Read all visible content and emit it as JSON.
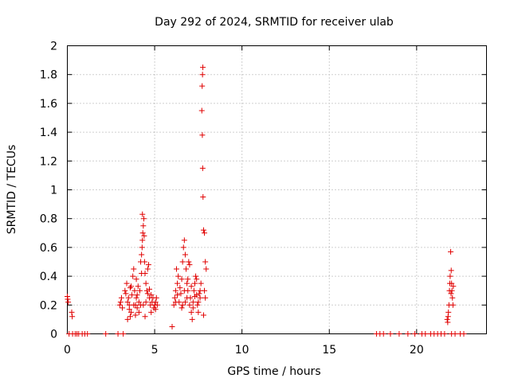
{
  "chart_data": {
    "type": "scatter",
    "title": "Day 292 of 2024, SRMTID for receiver ulab",
    "xlabel": "GPS time / hours",
    "ylabel": "SRMTID / TECUs",
    "xlim": [
      0,
      24
    ],
    "ylim": [
      0,
      2
    ],
    "xticks": [
      0,
      5,
      10,
      15,
      20
    ],
    "yticks": [
      0,
      0.2,
      0.4,
      0.6,
      0.8,
      1,
      1.2,
      1.4,
      1.6,
      1.8,
      2
    ],
    "xtick_labels": [
      "0",
      "5",
      "10",
      "15",
      "20"
    ],
    "ytick_labels": [
      "0",
      "0.2",
      "0.4",
      "0.6",
      "0.8",
      "1",
      "1.2",
      "1.4",
      "1.6",
      "1.8",
      "2"
    ],
    "grid": true,
    "marker": "+",
    "color": "#e00000",
    "series": [
      {
        "name": "SRMTID",
        "points": [
          [
            0.0,
            0.26
          ],
          [
            0.02,
            0.24
          ],
          [
            0.05,
            0.22
          ],
          [
            0.1,
            0.0
          ],
          [
            0.25,
            0.15
          ],
          [
            0.28,
            0.12
          ],
          [
            0.3,
            0.0
          ],
          [
            0.45,
            0.0
          ],
          [
            0.55,
            0.0
          ],
          [
            0.65,
            0.0
          ],
          [
            0.85,
            0.0
          ],
          [
            1.0,
            0.0
          ],
          [
            1.15,
            0.0
          ],
          [
            2.2,
            0.0
          ],
          [
            2.9,
            0.0
          ],
          [
            3.2,
            0.0
          ],
          [
            3.0,
            0.2
          ],
          [
            3.05,
            0.22
          ],
          [
            3.1,
            0.25
          ],
          [
            3.15,
            0.18
          ],
          [
            3.3,
            0.3
          ],
          [
            3.35,
            0.28
          ],
          [
            3.4,
            0.35
          ],
          [
            3.45,
            0.22
          ],
          [
            3.5,
            0.25
          ],
          [
            3.55,
            0.2
          ],
          [
            3.6,
            0.32
          ],
          [
            3.65,
            0.15
          ],
          [
            3.7,
            0.27
          ],
          [
            3.75,
            0.4
          ],
          [
            3.8,
            0.45
          ],
          [
            3.85,
            0.3
          ],
          [
            3.9,
            0.2
          ],
          [
            3.95,
            0.25
          ],
          [
            4.0,
            0.18
          ],
          [
            4.05,
            0.33
          ],
          [
            4.1,
            0.22
          ],
          [
            4.15,
            0.3
          ],
          [
            4.2,
            0.5
          ],
          [
            4.25,
            0.55
          ],
          [
            4.28,
            0.6
          ],
          [
            4.3,
            0.65
          ],
          [
            4.32,
            0.7
          ],
          [
            4.35,
            0.75
          ],
          [
            4.38,
            0.8
          ],
          [
            4.3,
            0.83
          ],
          [
            4.4,
            0.68
          ],
          [
            4.42,
            0.5
          ],
          [
            4.45,
            0.42
          ],
          [
            4.5,
            0.35
          ],
          [
            4.55,
            0.3
          ],
          [
            4.6,
            0.45
          ],
          [
            4.65,
            0.48
          ],
          [
            4.7,
            0.25
          ],
          [
            4.75,
            0.2
          ],
          [
            4.8,
            0.15
          ],
          [
            4.85,
            0.22
          ],
          [
            4.9,
            0.25
          ],
          [
            4.95,
            0.18
          ],
          [
            5.0,
            0.2
          ],
          [
            5.05,
            0.22
          ],
          [
            5.1,
            0.25
          ],
          [
            5.15,
            0.2
          ],
          [
            3.6,
            0.12
          ],
          [
            3.9,
            0.13
          ],
          [
            4.1,
            0.15
          ],
          [
            3.45,
            0.1
          ],
          [
            4.6,
            0.28
          ],
          [
            4.0,
            0.27
          ],
          [
            3.8,
            0.2
          ],
          [
            4.2,
            0.2
          ],
          [
            4.5,
            0.22
          ],
          [
            3.65,
            0.33
          ],
          [
            3.55,
            0.17
          ],
          [
            4.8,
            0.27
          ],
          [
            5.05,
            0.17
          ],
          [
            4.35,
            0.2
          ],
          [
            4.45,
            0.12
          ],
          [
            3.95,
            0.38
          ],
          [
            4.25,
            0.42
          ],
          [
            4.7,
            0.31
          ],
          [
            6.0,
            0.05
          ],
          [
            6.1,
            0.2
          ],
          [
            6.15,
            0.25
          ],
          [
            6.2,
            0.3
          ],
          [
            6.25,
            0.45
          ],
          [
            6.3,
            0.35
          ],
          [
            6.4,
            0.22
          ],
          [
            6.5,
            0.28
          ],
          [
            6.55,
            0.38
          ],
          [
            6.6,
            0.5
          ],
          [
            6.65,
            0.6
          ],
          [
            6.7,
            0.65
          ],
          [
            6.75,
            0.55
          ],
          [
            6.8,
            0.45
          ],
          [
            6.85,
            0.35
          ],
          [
            6.9,
            0.3
          ],
          [
            6.95,
            0.5
          ],
          [
            7.0,
            0.48
          ],
          [
            7.05,
            0.25
          ],
          [
            7.1,
            0.15
          ],
          [
            7.15,
            0.1
          ],
          [
            7.2,
            0.22
          ],
          [
            7.25,
            0.3
          ],
          [
            7.3,
            0.35
          ],
          [
            7.35,
            0.4
          ],
          [
            7.4,
            0.38
          ],
          [
            7.45,
            0.2
          ],
          [
            7.5,
            0.15
          ],
          [
            7.55,
            0.28
          ],
          [
            7.6,
            0.25
          ],
          [
            7.65,
            0.35
          ],
          [
            7.7,
            1.55
          ],
          [
            7.72,
            1.72
          ],
          [
            7.74,
            1.8
          ],
          [
            7.76,
            1.85
          ],
          [
            7.73,
            1.38
          ],
          [
            7.75,
            1.15
          ],
          [
            7.77,
            0.95
          ],
          [
            7.8,
            0.72
          ],
          [
            7.85,
            0.7
          ],
          [
            7.9,
            0.5
          ],
          [
            7.95,
            0.45
          ],
          [
            7.85,
            0.3
          ],
          [
            7.9,
            0.25
          ],
          [
            7.8,
            0.13
          ],
          [
            6.2,
            0.22
          ],
          [
            6.3,
            0.27
          ],
          [
            6.45,
            0.32
          ],
          [
            6.6,
            0.2
          ],
          [
            6.7,
            0.3
          ],
          [
            6.85,
            0.25
          ],
          [
            7.0,
            0.2
          ],
          [
            7.2,
            0.18
          ],
          [
            7.3,
            0.26
          ],
          [
            7.5,
            0.22
          ],
          [
            7.6,
            0.3
          ],
          [
            6.35,
            0.4
          ],
          [
            6.9,
            0.38
          ],
          [
            7.1,
            0.33
          ],
          [
            7.4,
            0.27
          ],
          [
            6.55,
            0.18
          ],
          [
            6.75,
            0.22
          ],
          [
            17.7,
            0.0
          ],
          [
            17.9,
            0.0
          ],
          [
            18.1,
            0.0
          ],
          [
            18.5,
            0.0
          ],
          [
            19.0,
            0.0
          ],
          [
            19.5,
            0.0
          ],
          [
            19.9,
            0.0
          ],
          [
            20.3,
            0.0
          ],
          [
            20.5,
            0.0
          ],
          [
            20.8,
            0.0
          ],
          [
            21.0,
            0.0
          ],
          [
            21.2,
            0.0
          ],
          [
            21.4,
            0.0
          ],
          [
            21.6,
            0.0
          ],
          [
            22.0,
            0.0
          ],
          [
            22.2,
            0.0
          ],
          [
            22.5,
            0.0
          ],
          [
            22.7,
            0.0
          ],
          [
            21.75,
            0.1
          ],
          [
            21.8,
            0.12
          ],
          [
            21.85,
            0.2
          ],
          [
            21.88,
            0.3
          ],
          [
            21.9,
            0.35
          ],
          [
            21.92,
            0.4
          ],
          [
            21.95,
            0.57
          ],
          [
            21.98,
            0.44
          ],
          [
            22.0,
            0.35
          ],
          [
            22.02,
            0.3
          ],
          [
            22.05,
            0.25
          ],
          [
            22.08,
            0.2
          ],
          [
            21.78,
            0.08
          ],
          [
            21.82,
            0.15
          ],
          [
            21.97,
            0.28
          ],
          [
            22.1,
            0.33
          ]
        ]
      }
    ]
  }
}
